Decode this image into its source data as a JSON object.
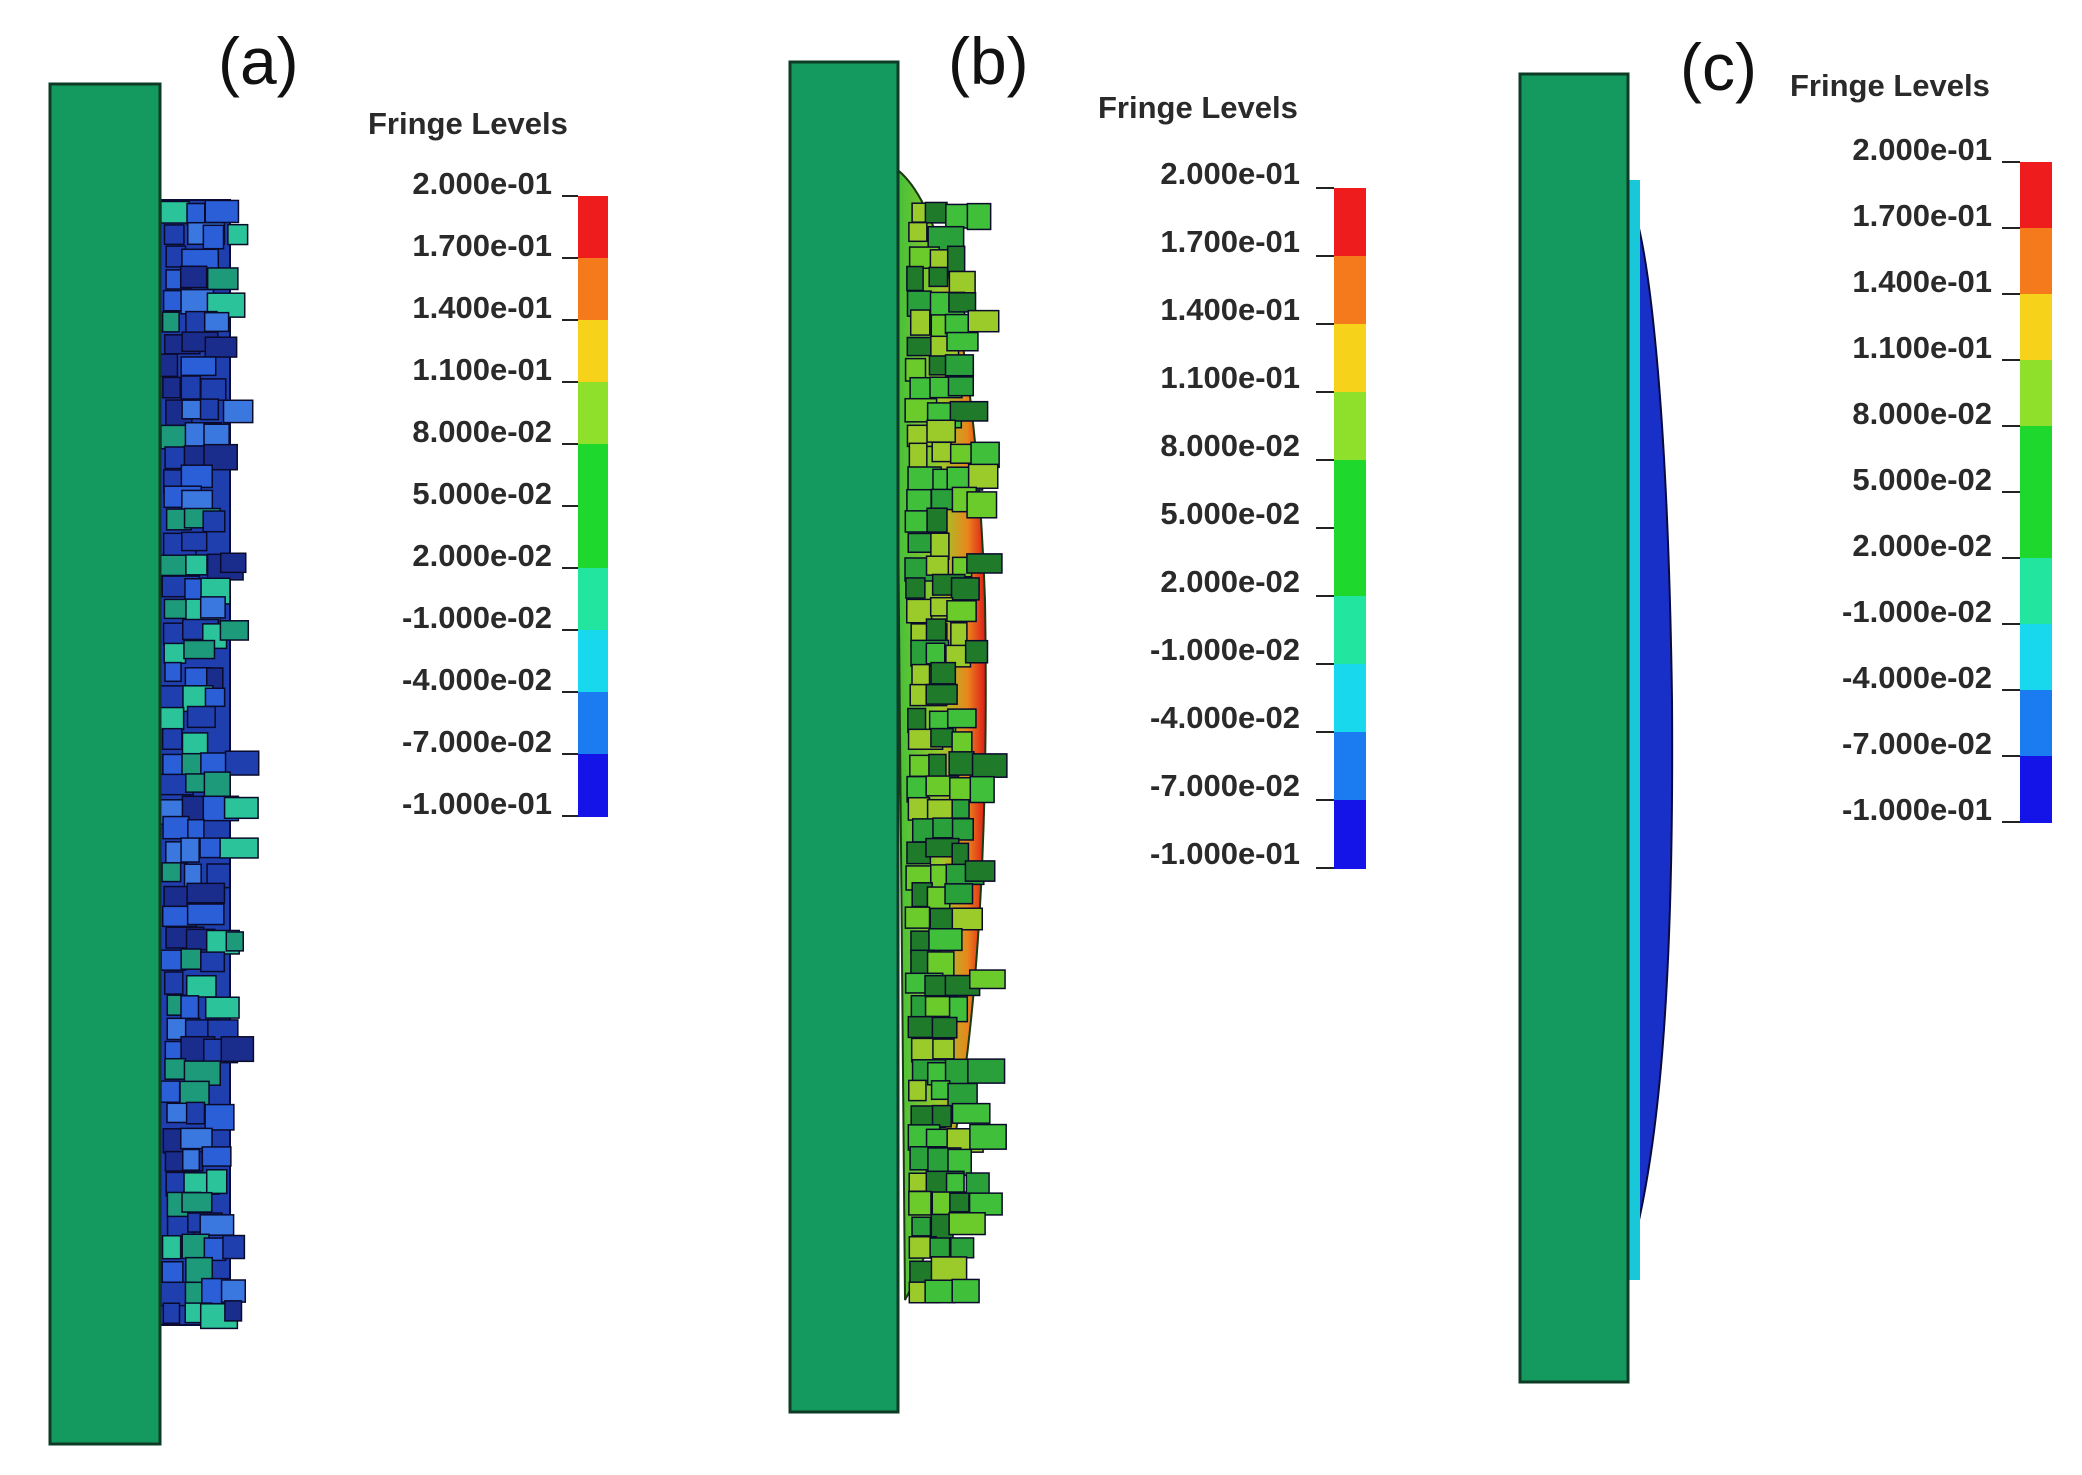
{
  "panels": [
    {
      "label": "(a)",
      "legend": {
        "title": "Fringe Levels",
        "levels": [
          "2.000e-01",
          "1.700e-01",
          "1.400e-01",
          "1.100e-01",
          "8.000e-02",
          "5.000e-02",
          "2.000e-02",
          "-1.000e-02",
          "-4.000e-02",
          "-7.000e-02",
          "-1.000e-01"
        ]
      }
    },
    {
      "label": "(b)",
      "legend": {
        "title": "Fringe Levels",
        "levels": [
          "2.000e-01",
          "1.700e-01",
          "1.400e-01",
          "1.100e-01",
          "8.000e-02",
          "5.000e-02",
          "2.000e-02",
          "-1.000e-02",
          "-4.000e-02",
          "-7.000e-02",
          "-1.000e-01"
        ]
      }
    },
    {
      "label": "(c)",
      "legend": {
        "title": "Fringe Levels",
        "levels": [
          "2.000e-01",
          "1.700e-01",
          "1.400e-01",
          "1.100e-01",
          "8.000e-02",
          "5.000e-02",
          "2.000e-02",
          "-1.000e-02",
          "-4.000e-02",
          "-7.000e-02",
          "-1.000e-01"
        ]
      }
    }
  ],
  "colors": {
    "plate": "#149a5e",
    "fringe_bands_top_to_bottom": [
      "#ee1c1c",
      "#f57a1c",
      "#f7d21a",
      "#8ee02a",
      "#1ed82e",
      "#1ed82e",
      "#22e6a0",
      "#18d8ee",
      "#1a7cf0",
      "#1414e8"
    ]
  }
}
